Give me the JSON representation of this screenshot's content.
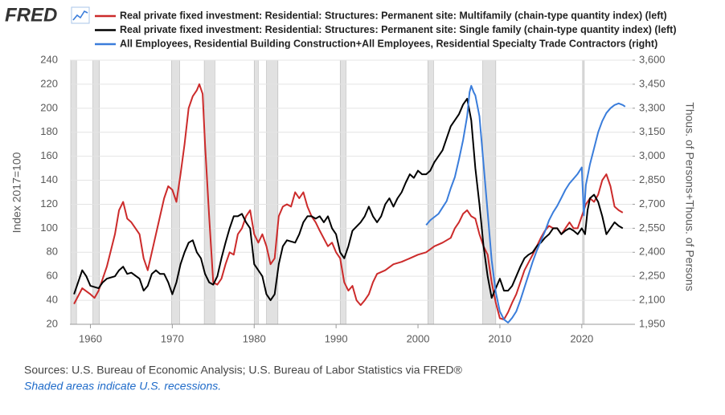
{
  "chart_data": {
    "type": "line",
    "logo": "FRED",
    "ylabel": "Index 2017=100",
    "y2label": "Thous. of Persons+Thous. of Persons",
    "source": "Sources: U.S. Bureau of Economic Analysis; U.S. Bureau of Labor Statistics via FRED®",
    "note": "Shaded areas indicate U.S. recessions.",
    "xlim": [
      1957.5,
      2026.2
    ],
    "xticks": [
      1960,
      1970,
      1980,
      1990,
      2000,
      2010,
      2020
    ],
    "ylim": [
      20,
      240
    ],
    "yticks": [
      20,
      40,
      60,
      80,
      100,
      120,
      140,
      160,
      180,
      200,
      220,
      240
    ],
    "y2lim": [
      1950,
      3600
    ],
    "y2ticks": [
      {
        "value": 1950,
        "label": "1,950"
      },
      {
        "value": 2100,
        "label": "2,100"
      },
      {
        "value": 2250,
        "label": "2,250"
      },
      {
        "value": 2400,
        "label": "2,400"
      },
      {
        "value": 2550,
        "label": "2,550"
      },
      {
        "value": 2700,
        "label": "2,700"
      },
      {
        "value": 2850,
        "label": "2,850"
      },
      {
        "value": 3000,
        "label": "3,000"
      },
      {
        "value": 3150,
        "label": "3,150"
      },
      {
        "value": 3300,
        "label": "3,300"
      },
      {
        "value": 3450,
        "label": "3,450"
      },
      {
        "value": 3600,
        "label": "3,600"
      }
    ],
    "grid": true,
    "recessions": [
      [
        1957.6,
        1958.3
      ],
      [
        1960.3,
        1961.1
      ],
      [
        1969.9,
        1970.9
      ],
      [
        1973.9,
        1975.2
      ],
      [
        1980.0,
        1980.5
      ],
      [
        1981.5,
        1982.9
      ],
      [
        1990.5,
        1991.2
      ],
      [
        2001.2,
        2001.9
      ],
      [
        2007.9,
        2009.5
      ],
      [
        2020.1,
        2020.3
      ]
    ],
    "series": [
      {
        "name": "Real private fixed investment: Residential: Structures: Permanent site: Multifamily (chain-type quantity index) (left)",
        "color": "#cc2b2b",
        "x": [
          1958,
          1959,
          1960,
          1960.5,
          1961,
          1962,
          1963,
          1963.5,
          1964,
          1964.5,
          1965,
          1966,
          1966.5,
          1967,
          1967.5,
          1968,
          1968.5,
          1969,
          1969.5,
          1970,
          1970.5,
          1971,
          1971.5,
          1972,
          1972.5,
          1973,
          1973.3,
          1973.7,
          1974,
          1974.5,
          1975,
          1975.5,
          1976,
          1976.5,
          1977,
          1977.5,
          1978,
          1978.5,
          1979,
          1979.5,
          1980,
          1980.5,
          1981,
          1981.5,
          1982,
          1982.5,
          1983,
          1983.5,
          1984,
          1984.5,
          1985,
          1985.5,
          1986,
          1986.5,
          1987,
          1987.5,
          1988,
          1989,
          1989.5,
          1990,
          1990.5,
          1991,
          1991.5,
          1992,
          1992.5,
          1993,
          1993.5,
          1994,
          1994.5,
          1995,
          1996,
          1997,
          1998,
          1999,
          2000,
          2001,
          2002,
          2003,
          2004,
          2004.5,
          2005,
          2005.5,
          2006,
          2006.5,
          2007,
          2007.5,
          2008,
          2008.5,
          2009,
          2009.5,
          2010,
          2010.5,
          2011,
          2011.5,
          2012,
          2012.5,
          2013,
          2014,
          2015,
          2015.5,
          2016,
          2016.5,
          2017,
          2017.5,
          2018,
          2018.5,
          2019,
          2019.5,
          2020,
          2020.5,
          2021,
          2021.5,
          2022,
          2022.5,
          2023,
          2023.5,
          2024,
          2024.5,
          2025
        ],
        "values": [
          37,
          50,
          45,
          42,
          48,
          68,
          95,
          115,
          122,
          108,
          105,
          95,
          75,
          65,
          80,
          95,
          110,
          125,
          135,
          132,
          122,
          145,
          170,
          200,
          210,
          215,
          220,
          212,
          170,
          110,
          55,
          53,
          58,
          70,
          80,
          78,
          95,
          100,
          110,
          115,
          95,
          88,
          95,
          85,
          70,
          75,
          110,
          118,
          120,
          118,
          130,
          125,
          130,
          118,
          110,
          105,
          98,
          85,
          88,
          80,
          75,
          55,
          48,
          52,
          40,
          36,
          40,
          45,
          55,
          62,
          65,
          70,
          72,
          75,
          78,
          80,
          85,
          88,
          92,
          100,
          105,
          112,
          115,
          110,
          108,
          95,
          85,
          78,
          55,
          38,
          25,
          24,
          30,
          38,
          45,
          55,
          65,
          78,
          92,
          98,
          102,
          100,
          100,
          95,
          100,
          105,
          100,
          100,
          110,
          120,
          125,
          122,
          128,
          140,
          145,
          135,
          118,
          115,
          113
        ]
      },
      {
        "name": "Real private fixed investment: Residential: Structures: Permanent site: Single family (chain-type quantity index) (left)",
        "color": "#000000",
        "x": [
          1958,
          1958.5,
          1959,
          1959.5,
          1960,
          1961,
          1961.5,
          1962,
          1963,
          1963.5,
          1964,
          1964.5,
          1965,
          1966,
          1966.5,
          1967,
          1967.5,
          1968,
          1968.5,
          1969,
          1969.5,
          1970,
          1970.5,
          1971,
          1971.5,
          1972,
          1972.5,
          1973,
          1973.5,
          1974,
          1974.5,
          1975,
          1975.5,
          1976,
          1976.5,
          1977,
          1977.5,
          1978,
          1978.5,
          1979,
          1979.5,
          1980,
          1980.5,
          1981,
          1981.5,
          1982,
          1982.5,
          1983,
          1983.5,
          1984,
          1985,
          1985.5,
          1986,
          1986.5,
          1987,
          1987.5,
          1988,
          1988.5,
          1989,
          1989.5,
          1990,
          1990.5,
          1991,
          1991.5,
          1992,
          1993,
          1993.5,
          1994,
          1994.5,
          1995,
          1995.5,
          1996,
          1996.5,
          1997,
          1997.5,
          1998,
          1998.5,
          1999,
          1999.5,
          2000,
          2000.5,
          2001,
          2001.5,
          2002,
          2003,
          2003.5,
          2004,
          2004.5,
          2005,
          2005.5,
          2006,
          2006.5,
          2007,
          2007.5,
          2008,
          2008.5,
          2009,
          2009.5,
          2010,
          2010.5,
          2011,
          2011.5,
          2012,
          2012.5,
          2013,
          2013.5,
          2014,
          2014.5,
          2015,
          2015.5,
          2016,
          2016.5,
          2017,
          2017.5,
          2018,
          2018.5,
          2019,
          2019.5,
          2020,
          2020.4,
          2020.7,
          2021,
          2021.5,
          2022,
          2022.5,
          2023,
          2023.5,
          2024,
          2024.5,
          2025
        ],
        "values": [
          45,
          55,
          65,
          60,
          52,
          50,
          55,
          58,
          60,
          65,
          68,
          62,
          63,
          58,
          48,
          52,
          62,
          65,
          62,
          62,
          55,
          45,
          55,
          70,
          80,
          88,
          90,
          80,
          75,
          62,
          55,
          53,
          60,
          75,
          88,
          100,
          110,
          110,
          112,
          105,
          100,
          70,
          65,
          60,
          45,
          40,
          45,
          70,
          85,
          90,
          88,
          95,
          105,
          110,
          110,
          108,
          110,
          105,
          110,
          100,
          95,
          80,
          75,
          85,
          98,
          105,
          110,
          118,
          110,
          105,
          110,
          120,
          125,
          118,
          125,
          130,
          138,
          145,
          142,
          148,
          145,
          145,
          148,
          155,
          165,
          175,
          185,
          190,
          195,
          203,
          208,
          190,
          150,
          120,
          85,
          60,
          42,
          50,
          58,
          48,
          48,
          52,
          60,
          68,
          75,
          78,
          80,
          85,
          88,
          92,
          95,
          100,
          100,
          95,
          98,
          100,
          98,
          95,
          100,
          95,
          115,
          125,
          128,
          122,
          110,
          95,
          100,
          105,
          102,
          100
        ]
      },
      {
        "name": "All Employees, Residential Building Construction+All Employees, Residential Specialty Trade Contractors (right)",
        "color": "#3a7ddb",
        "axis": "y2",
        "x": [
          2001,
          2001.5,
          2002,
          2002.5,
          2003,
          2003.5,
          2004,
          2004.5,
          2005,
          2005.5,
          2006,
          2006.3,
          2006.5,
          2006.8,
          2007,
          2007.5,
          2008,
          2008.5,
          2009,
          2009.5,
          2010,
          2010.5,
          2011,
          2011.5,
          2012,
          2012.5,
          2013,
          2013.5,
          2014,
          2014.5,
          2015,
          2015.5,
          2016,
          2016.5,
          2017,
          2017.5,
          2018,
          2018.5,
          2019,
          2019.5,
          2020,
          2020.25,
          2020.5,
          2021,
          2021.5,
          2022,
          2022.5,
          2023,
          2023.5,
          2024,
          2024.5,
          2025,
          2025.3
        ],
        "values": [
          2570,
          2600,
          2620,
          2640,
          2680,
          2720,
          2800,
          2870,
          2980,
          3100,
          3250,
          3400,
          3440,
          3400,
          3380,
          3250,
          2950,
          2650,
          2350,
          2150,
          2030,
          1980,
          1960,
          1990,
          2030,
          2100,
          2180,
          2260,
          2340,
          2410,
          2470,
          2530,
          2600,
          2650,
          2690,
          2740,
          2790,
          2830,
          2860,
          2890,
          2930,
          2630,
          2820,
          2950,
          3050,
          3150,
          3220,
          3270,
          3300,
          3320,
          3330,
          3320,
          3310
        ]
      }
    ]
  }
}
